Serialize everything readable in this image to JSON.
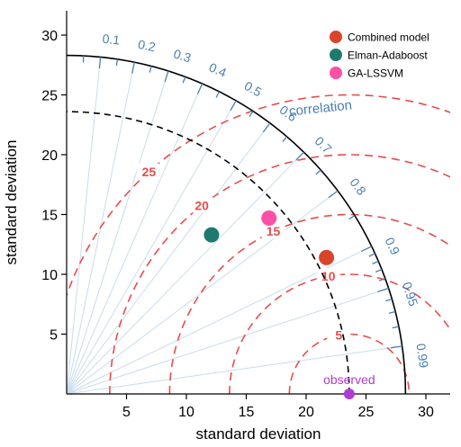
{
  "chart_data": {
    "type": "taylor",
    "xlabel": "standard deviation",
    "ylabel": "standard deviation",
    "xlim": [
      0,
      32
    ],
    "ylim": [
      0,
      32
    ],
    "x_ticks": [
      5,
      10,
      15,
      20,
      25,
      30
    ],
    "y_ticks": [
      5,
      10,
      15,
      20,
      25,
      30
    ],
    "correlation_label": "correlation",
    "correlation_ticks": [
      {
        "label": "0.1",
        "r": 0.1
      },
      {
        "label": "0.2",
        "r": 0.2
      },
      {
        "label": "0.3",
        "r": 0.3
      },
      {
        "label": "0.4",
        "r": 0.4
      },
      {
        "label": "0.5",
        "r": 0.5
      },
      {
        "label": "0.6",
        "r": 0.6
      },
      {
        "label": "0.7",
        "r": 0.7
      },
      {
        "label": "0.8",
        "r": 0.8
      },
      {
        "label": "0.9",
        "r": 0.9
      },
      {
        "label": "0.95",
        "r": 0.95
      },
      {
        "label": "0.99",
        "r": 0.99
      }
    ],
    "outer_arc_sd": 28.3,
    "observed": {
      "label": "observed",
      "sd": 23.6,
      "color": "#b03ad6"
    },
    "rmsd_contours": [
      {
        "value": 5,
        "label": "5"
      },
      {
        "value": 10,
        "label": "10"
      },
      {
        "value": 15,
        "label": "15"
      },
      {
        "value": 20,
        "label": "20"
      },
      {
        "value": 25,
        "label": "25"
      }
    ],
    "series": [
      {
        "name": "Combined model",
        "x": 21.7,
        "y": 11.4,
        "color": "#d9452b"
      },
      {
        "name": "Elman-Adaboost",
        "x": 12.1,
        "y": 13.3,
        "color": "#1f7a6e"
      },
      {
        "name": "GA-LSSVM",
        "x": 16.9,
        "y": 14.7,
        "color": "#ff4fa6"
      }
    ],
    "colors": {
      "axis": "#000000",
      "correlation": "#4a7fb0",
      "rays": "#c9dcec",
      "rmsd": "#e84c4c",
      "observed_arc": "#000000"
    }
  }
}
